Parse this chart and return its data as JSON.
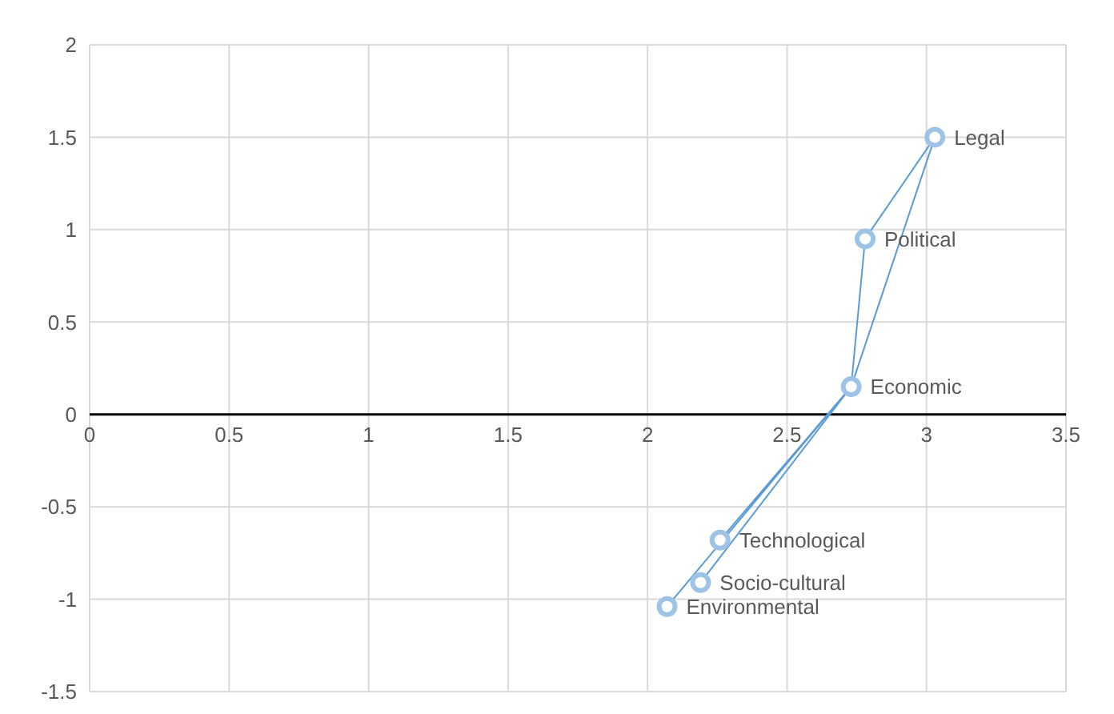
{
  "chart_data": {
    "type": "scatter",
    "xlim": [
      0,
      3.5
    ],
    "xticks": [
      0,
      0.5,
      1,
      1.5,
      2,
      2.5,
      3,
      3.5
    ],
    "ylim": [
      -1.5,
      2
    ],
    "yticks": [
      -1.5,
      -1,
      -0.5,
      0,
      0.5,
      1,
      1.5,
      2
    ],
    "grid": true,
    "marker": "circle",
    "series": [
      {
        "type": "line",
        "marker": "none",
        "color": "#5b9bd5",
        "x": [
          2.78,
          3.03,
          2.73,
          2.78,
          2.73,
          2.26,
          2.73,
          2.19,
          2.73,
          2.07
        ],
        "values": [
          0.95,
          1.5,
          0.15,
          0.95,
          0.15,
          -0.68,
          0.15,
          -0.91,
          0.15,
          -1.04
        ]
      },
      {
        "color": "#9dc3e6",
        "x": [
          3.03,
          2.78,
          2.73,
          2.26,
          2.19,
          2.07
        ],
        "values": [
          1.5,
          0.95,
          0.15,
          -0.68,
          -0.91,
          -1.04
        ]
      }
    ],
    "annotations": [
      {
        "text": "Legal",
        "x": 3.03,
        "y": 1.5
      },
      {
        "text": "Political",
        "x": 2.78,
        "y": 0.95
      },
      {
        "text": "Economic",
        "x": 2.73,
        "y": 0.15
      },
      {
        "text": "Technological",
        "x": 2.26,
        "y": -0.68
      },
      {
        "text": "Socio-cultural",
        "x": 2.19,
        "y": -0.91
      },
      {
        "text": "Environmental",
        "x": 2.07,
        "y": -1.04
      }
    ]
  }
}
